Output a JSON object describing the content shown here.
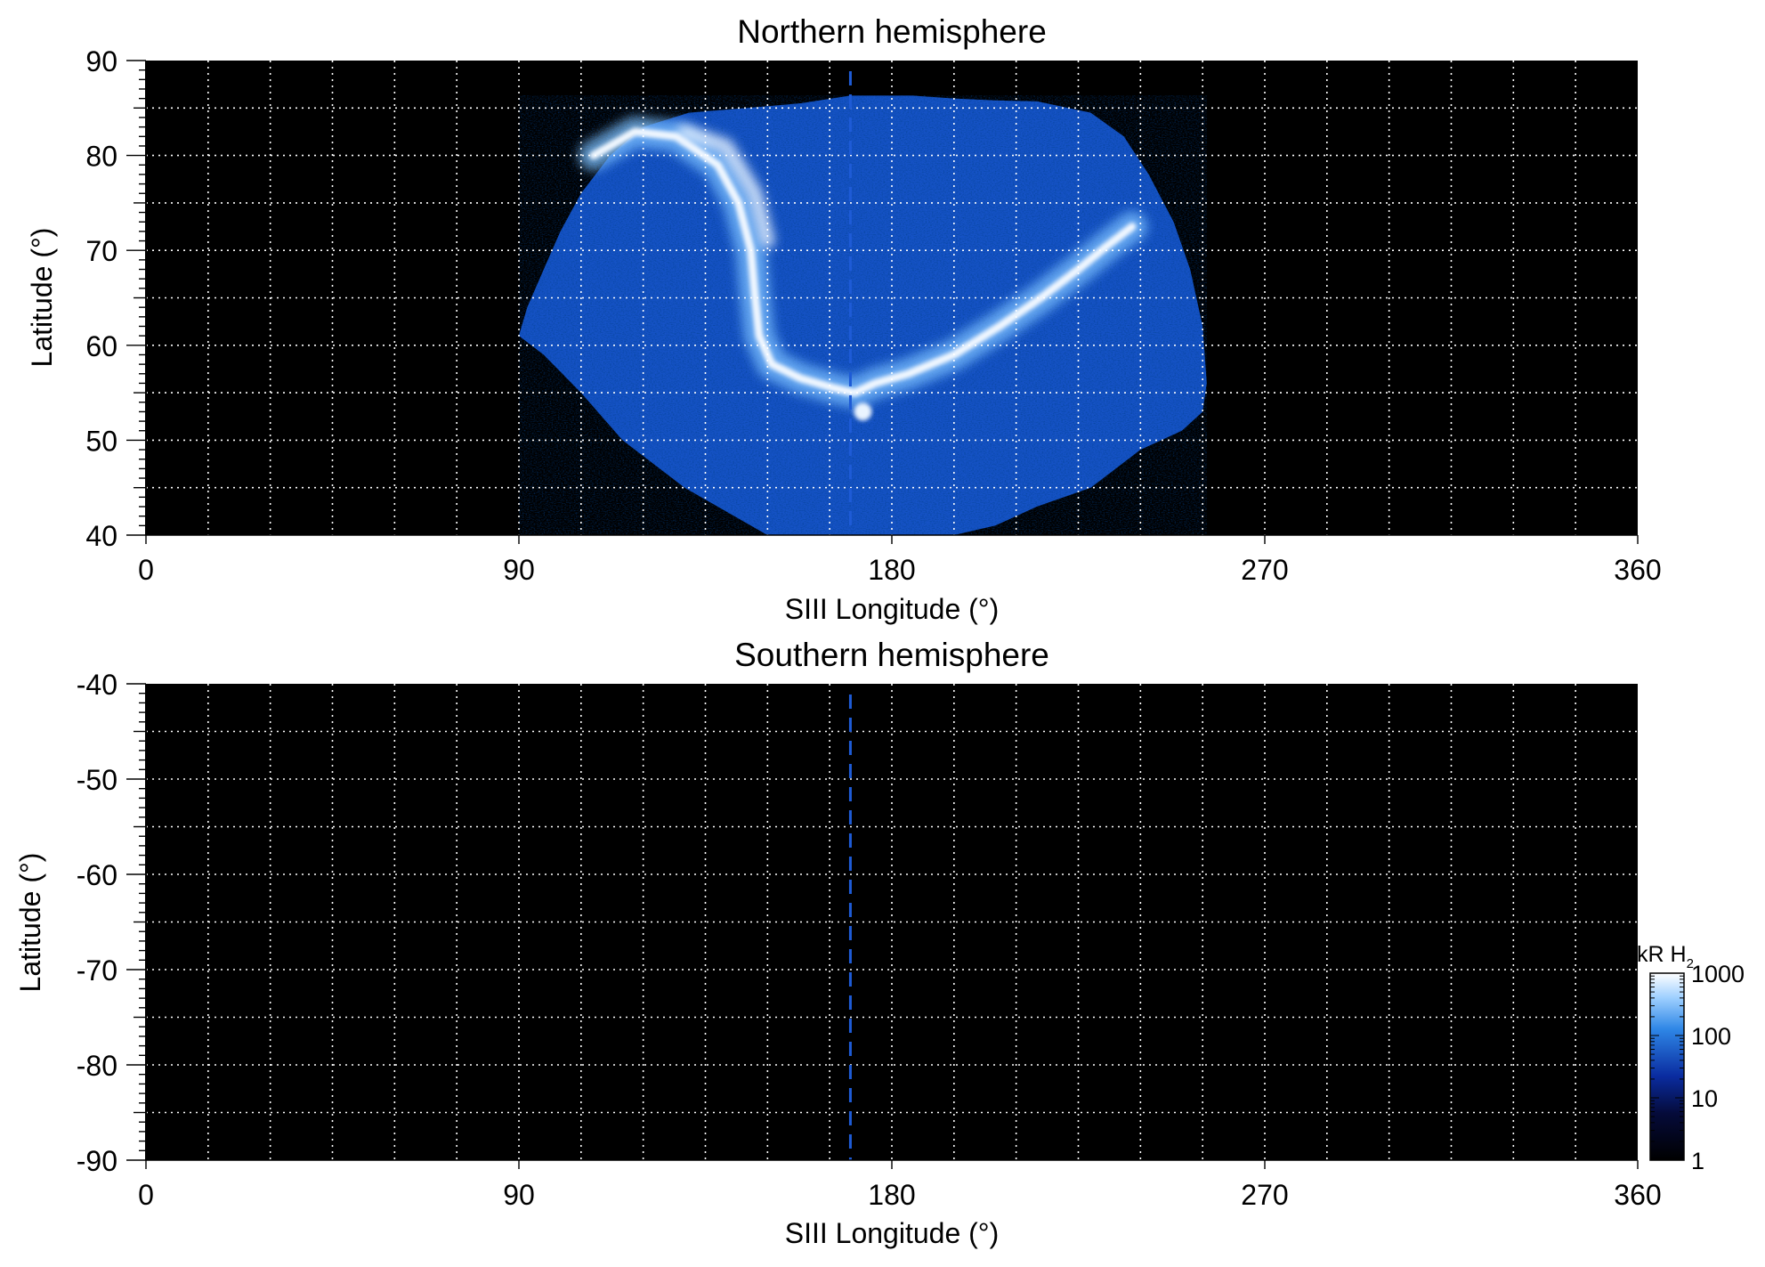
{
  "chart_data": [
    {
      "type": "heatmap",
      "title": "Northern hemisphere",
      "xlabel": "SIII Longitude (°)",
      "ylabel": "Latitude (°)",
      "xlim": [
        0,
        360
      ],
      "ylim": [
        40,
        90
      ],
      "xticks": [
        0,
        90,
        180,
        270,
        360
      ],
      "yticks": [
        40,
        50,
        60,
        70,
        80,
        90
      ],
      "grid": true,
      "background": "#000000",
      "dashed_meridian_longitude": 170,
      "coverage_outline": [
        [
          90,
          61
        ],
        [
          92,
          64
        ],
        [
          96,
          68
        ],
        [
          100,
          72
        ],
        [
          105,
          76
        ],
        [
          112,
          80
        ],
        [
          120,
          83
        ],
        [
          131,
          84.5
        ],
        [
          145,
          85
        ],
        [
          158,
          85.5
        ],
        [
          170,
          86.3
        ],
        [
          185,
          86.3
        ],
        [
          195,
          86
        ],
        [
          205,
          85.8
        ],
        [
          215,
          85.7
        ],
        [
          228,
          84.5
        ],
        [
          236,
          82
        ],
        [
          242,
          78
        ],
        [
          248,
          73
        ],
        [
          252,
          68
        ],
        [
          255,
          62
        ],
        [
          256,
          56
        ],
        [
          255,
          53
        ],
        [
          250,
          51
        ],
        [
          240,
          49
        ],
        [
          228,
          45
        ],
        [
          215,
          43
        ],
        [
          205,
          41
        ],
        [
          195,
          40
        ],
        [
          160,
          40
        ],
        [
          150,
          40
        ],
        [
          142,
          42
        ],
        [
          130,
          45
        ],
        [
          115,
          50
        ],
        [
          105,
          55
        ],
        [
          96,
          59
        ],
        [
          90,
          61
        ]
      ],
      "main_oval": [
        [
          108,
          80
        ],
        [
          118,
          82.5
        ],
        [
          128,
          82
        ],
        [
          138,
          79
        ],
        [
          143,
          75
        ],
        [
          146,
          70
        ],
        [
          147,
          65
        ],
        [
          148,
          61
        ],
        [
          151,
          58
        ],
        [
          158,
          56.5
        ],
        [
          166,
          55.5
        ],
        [
          171,
          55
        ],
        [
          176,
          56
        ],
        [
          184,
          57
        ],
        [
          195,
          59
        ],
        [
          206,
          62
        ],
        [
          216,
          65
        ],
        [
          225,
          68
        ],
        [
          232,
          70.5
        ],
        [
          238,
          72.5
        ]
      ],
      "secondary_arc": [
        [
          130,
          82.5
        ],
        [
          140,
          81
        ],
        [
          147,
          76
        ],
        [
          150,
          71
        ]
      ],
      "footprint_spot": [
        173,
        53
      ]
    },
    {
      "type": "heatmap",
      "title": "Southern hemisphere",
      "xlabel": "SIII Longitude (°)",
      "ylabel": "Latitude (°)",
      "xlim": [
        0,
        360
      ],
      "ylim": [
        -90,
        -40
      ],
      "xticks": [
        0,
        90,
        180,
        270,
        360
      ],
      "yticks": [
        -40,
        -50,
        -60,
        -70,
        -80,
        -90
      ],
      "grid": true,
      "background": "#000000",
      "dashed_meridian_longitude": 170
    }
  ],
  "colorbar": {
    "label": "kR H",
    "label_subscript": "2",
    "scale": "log",
    "range": [
      1,
      1000
    ],
    "ticks": [
      "1000",
      "100",
      "10",
      "1"
    ],
    "colors": [
      "#ffffff",
      "#2e86e6",
      "#0a1a8a",
      "#000000"
    ]
  }
}
